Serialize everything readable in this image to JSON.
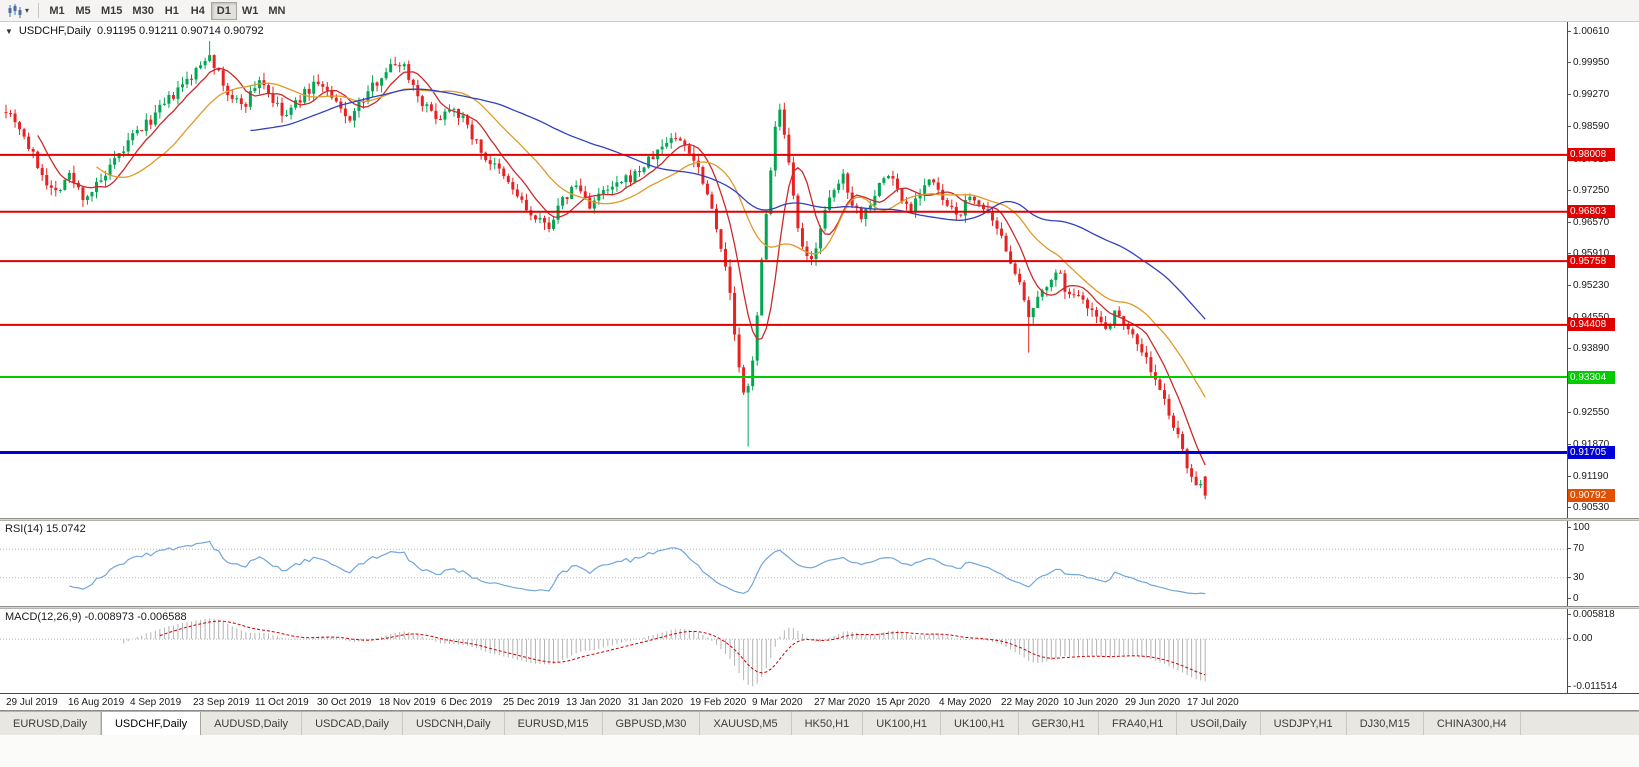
{
  "toolbar": {
    "timeframes": [
      "M1",
      "M5",
      "M15",
      "M30",
      "H1",
      "H4",
      "D1",
      "W1",
      "MN"
    ],
    "active_timeframe": "D1"
  },
  "chart": {
    "symbol_header": "USDCHF,Daily",
    "ohlc_text": "0.91195 0.91211 0.90714 0.90792",
    "axis_top": 1.0061,
    "axis_bottom": 0.9053,
    "price_axis_labels": [
      "1.00610",
      "0.99950",
      "0.99270",
      "0.98590",
      "0.97910",
      "0.97250",
      "0.96570",
      "0.95910",
      "0.95230",
      "0.94550",
      "0.93890",
      "0.93210",
      "0.92550",
      "0.91870",
      "0.91190",
      "0.90530"
    ],
    "hlines": [
      {
        "price": 0.98008,
        "label": "0.98008",
        "color": "#e00000",
        "width": 2
      },
      {
        "price": 0.96803,
        "label": "0.96803",
        "color": "#e00000",
        "width": 2
      },
      {
        "price": 0.95758,
        "label": "0.95758",
        "color": "#e00000",
        "width": 2
      },
      {
        "price": 0.94408,
        "label": "0.94408",
        "color": "#e00000",
        "width": 2
      },
      {
        "price": 0.93304,
        "label": "0.93304",
        "color": "#00cc00",
        "width": 2
      },
      {
        "price": 0.91705,
        "label": "0.91705",
        "color": "#0000d8",
        "width": 3
      }
    ],
    "current_price": {
      "value": 0.90792,
      "label": "0.90792",
      "color": "#e05000"
    }
  },
  "chart_data": {
    "type": "candlestick",
    "symbol": "USDCHF",
    "timeframe": "Daily",
    "open": 0.91195,
    "high": 0.91211,
    "low": 0.90714,
    "close": 0.90792,
    "bars": 266,
    "data_region_fraction": 0.772,
    "date_label_span_fraction": 0.985,
    "candle_up_color": "#00a651",
    "candle_down_color": "#e62222",
    "moving_averages": [
      {
        "name": "ma-fast",
        "period": 8,
        "color": "#cc2a2a"
      },
      {
        "name": "ma-medium",
        "period": 21,
        "color": "#e09a28"
      },
      {
        "name": "ma-slow",
        "period": 55,
        "color": "#3340c0"
      }
    ],
    "price_path_anchors": [
      [
        0.0,
        0.99
      ],
      [
        0.01,
        0.9868
      ],
      [
        0.022,
        0.98
      ],
      [
        0.04,
        0.9718
      ],
      [
        0.052,
        0.976
      ],
      [
        0.065,
        0.971
      ],
      [
        0.08,
        0.9745
      ],
      [
        0.095,
        0.98
      ],
      [
        0.105,
        0.9838
      ],
      [
        0.118,
        0.9868
      ],
      [
        0.14,
        0.9928
      ],
      [
        0.158,
        0.9975
      ],
      [
        0.17,
        1.002
      ],
      [
        0.178,
        0.9965
      ],
      [
        0.188,
        0.9915
      ],
      [
        0.2,
        0.9912
      ],
      [
        0.212,
        0.9965
      ],
      [
        0.222,
        0.9918
      ],
      [
        0.232,
        0.9878
      ],
      [
        0.245,
        0.992
      ],
      [
        0.26,
        0.9958
      ],
      [
        0.272,
        0.9918
      ],
      [
        0.285,
        0.9875
      ],
      [
        0.298,
        0.9918
      ],
      [
        0.315,
        0.9978
      ],
      [
        0.33,
        1.0
      ],
      [
        0.342,
        0.9935
      ],
      [
        0.352,
        0.9895
      ],
      [
        0.362,
        0.988
      ],
      [
        0.372,
        0.991
      ],
      [
        0.385,
        0.986
      ],
      [
        0.398,
        0.98
      ],
      [
        0.41,
        0.9768
      ],
      [
        0.425,
        0.972
      ],
      [
        0.44,
        0.9663
      ],
      [
        0.452,
        0.965
      ],
      [
        0.465,
        0.9705
      ],
      [
        0.475,
        0.9738
      ],
      [
        0.487,
        0.9695
      ],
      [
        0.498,
        0.972
      ],
      [
        0.51,
        0.9735
      ],
      [
        0.525,
        0.976
      ],
      [
        0.54,
        0.9798
      ],
      [
        0.555,
        0.984
      ],
      [
        0.568,
        0.982
      ],
      [
        0.58,
        0.976
      ],
      [
        0.592,
        0.966
      ],
      [
        0.603,
        0.952
      ],
      [
        0.612,
        0.933
      ],
      [
        0.617,
        0.927
      ],
      [
        0.624,
        0.94
      ],
      [
        0.632,
        0.962
      ],
      [
        0.64,
        0.984
      ],
      [
        0.645,
        0.9895
      ],
      [
        0.652,
        0.979
      ],
      [
        0.658,
        0.968
      ],
      [
        0.665,
        0.9585
      ],
      [
        0.672,
        0.9575
      ],
      [
        0.68,
        0.966
      ],
      [
        0.69,
        0.972
      ],
      [
        0.698,
        0.9758
      ],
      [
        0.706,
        0.97
      ],
      [
        0.714,
        0.9668
      ],
      [
        0.722,
        0.971
      ],
      [
        0.73,
        0.9745
      ],
      [
        0.738,
        0.9762
      ],
      [
        0.746,
        0.9708
      ],
      [
        0.754,
        0.9688
      ],
      [
        0.762,
        0.9725
      ],
      [
        0.77,
        0.975
      ],
      [
        0.778,
        0.9718
      ],
      [
        0.786,
        0.9685
      ],
      [
        0.794,
        0.9672
      ],
      [
        0.802,
        0.9705
      ],
      [
        0.81,
        0.9708
      ],
      [
        0.818,
        0.9672
      ],
      [
        0.826,
        0.9638
      ],
      [
        0.835,
        0.96
      ],
      [
        0.843,
        0.9545
      ],
      [
        0.852,
        0.9452
      ],
      [
        0.858,
        0.9475
      ],
      [
        0.865,
        0.952
      ],
      [
        0.872,
        0.9545
      ],
      [
        0.88,
        0.954
      ],
      [
        0.888,
        0.949
      ],
      [
        0.895,
        0.9515
      ],
      [
        0.902,
        0.9486
      ],
      [
        0.91,
        0.9452
      ],
      [
        0.918,
        0.944
      ],
      [
        0.926,
        0.947
      ],
      [
        0.934,
        0.9445
      ],
      [
        0.942,
        0.9408
      ],
      [
        0.95,
        0.9375
      ],
      [
        0.957,
        0.933
      ],
      [
        0.964,
        0.929
      ],
      [
        0.972,
        0.924
      ],
      [
        0.98,
        0.918
      ],
      [
        0.988,
        0.9125
      ],
      [
        1.0,
        0.9079
      ]
    ],
    "wick_events": [
      {
        "t": 0.17,
        "high": 1.0042
      },
      {
        "t": 0.617,
        "low": 0.9183
      },
      {
        "t": 0.645,
        "high": 0.9905
      },
      {
        "t": 0.852,
        "low": 0.9382
      }
    ],
    "date_labels": [
      "29 Jul 2019",
      "16 Aug 2019",
      "4 Sep 2019",
      "23 Sep 2019",
      "11 Oct 2019",
      "30 Oct 2019",
      "18 Nov 2019",
      "6 Dec 2019",
      "25 Dec 2019",
      "13 Jan 2020",
      "31 Jan 2020",
      "19 Feb 2020",
      "9 Mar 2020",
      "27 Mar 2020",
      "15 Apr 2020",
      "4 May 2020",
      "22 May 2020",
      "10 Jun 2020",
      "29 Jun 2020",
      "17 Jul 2020"
    ]
  },
  "rsi": {
    "label": "RSI(14) 15.0742",
    "period": 14,
    "value": 15.0742,
    "levels": [
      "100",
      "70",
      "30",
      "0"
    ],
    "dotted_levels": [
      70,
      30
    ],
    "line_color": "#71a6dc"
  },
  "macd": {
    "label": "MACD(12,26,9) -0.008973 -0.006588",
    "value": -0.008973,
    "signal_value": -0.006588,
    "scale_top": "0.005818",
    "scale_zero": "0.00",
    "scale_bottom": "-0.011514",
    "max": 0.005818,
    "min": -0.011514,
    "histogram_color": "#b3b3b3",
    "signal_color": "#cc0000"
  },
  "tabs": {
    "items": [
      {
        "label": "EURUSD,Daily",
        "active": false
      },
      {
        "label": "USDCHF,Daily",
        "active": true
      },
      {
        "label": "AUDUSD,Daily",
        "active": false
      },
      {
        "label": "USDCAD,Daily",
        "active": false
      },
      {
        "label": "USDCNH,Daily",
        "active": false
      },
      {
        "label": "EURUSD,M15",
        "active": false
      },
      {
        "label": "GBPUSD,M30",
        "active": false
      },
      {
        "label": "XAUUSD,M5",
        "active": false
      },
      {
        "label": "HK50,H1",
        "active": false
      },
      {
        "label": "UK100,H1",
        "active": false
      },
      {
        "label": "UK100,H1",
        "active": false
      },
      {
        "label": "GER30,H1",
        "active": false
      },
      {
        "label": "FRA40,H1",
        "active": false
      },
      {
        "label": "USOil,Daily",
        "active": false
      },
      {
        "label": "USDJPY,H1",
        "active": false
      },
      {
        "label": "DJ30,M15",
        "active": false
      },
      {
        "label": "CHINA300,H4",
        "active": false
      }
    ]
  }
}
